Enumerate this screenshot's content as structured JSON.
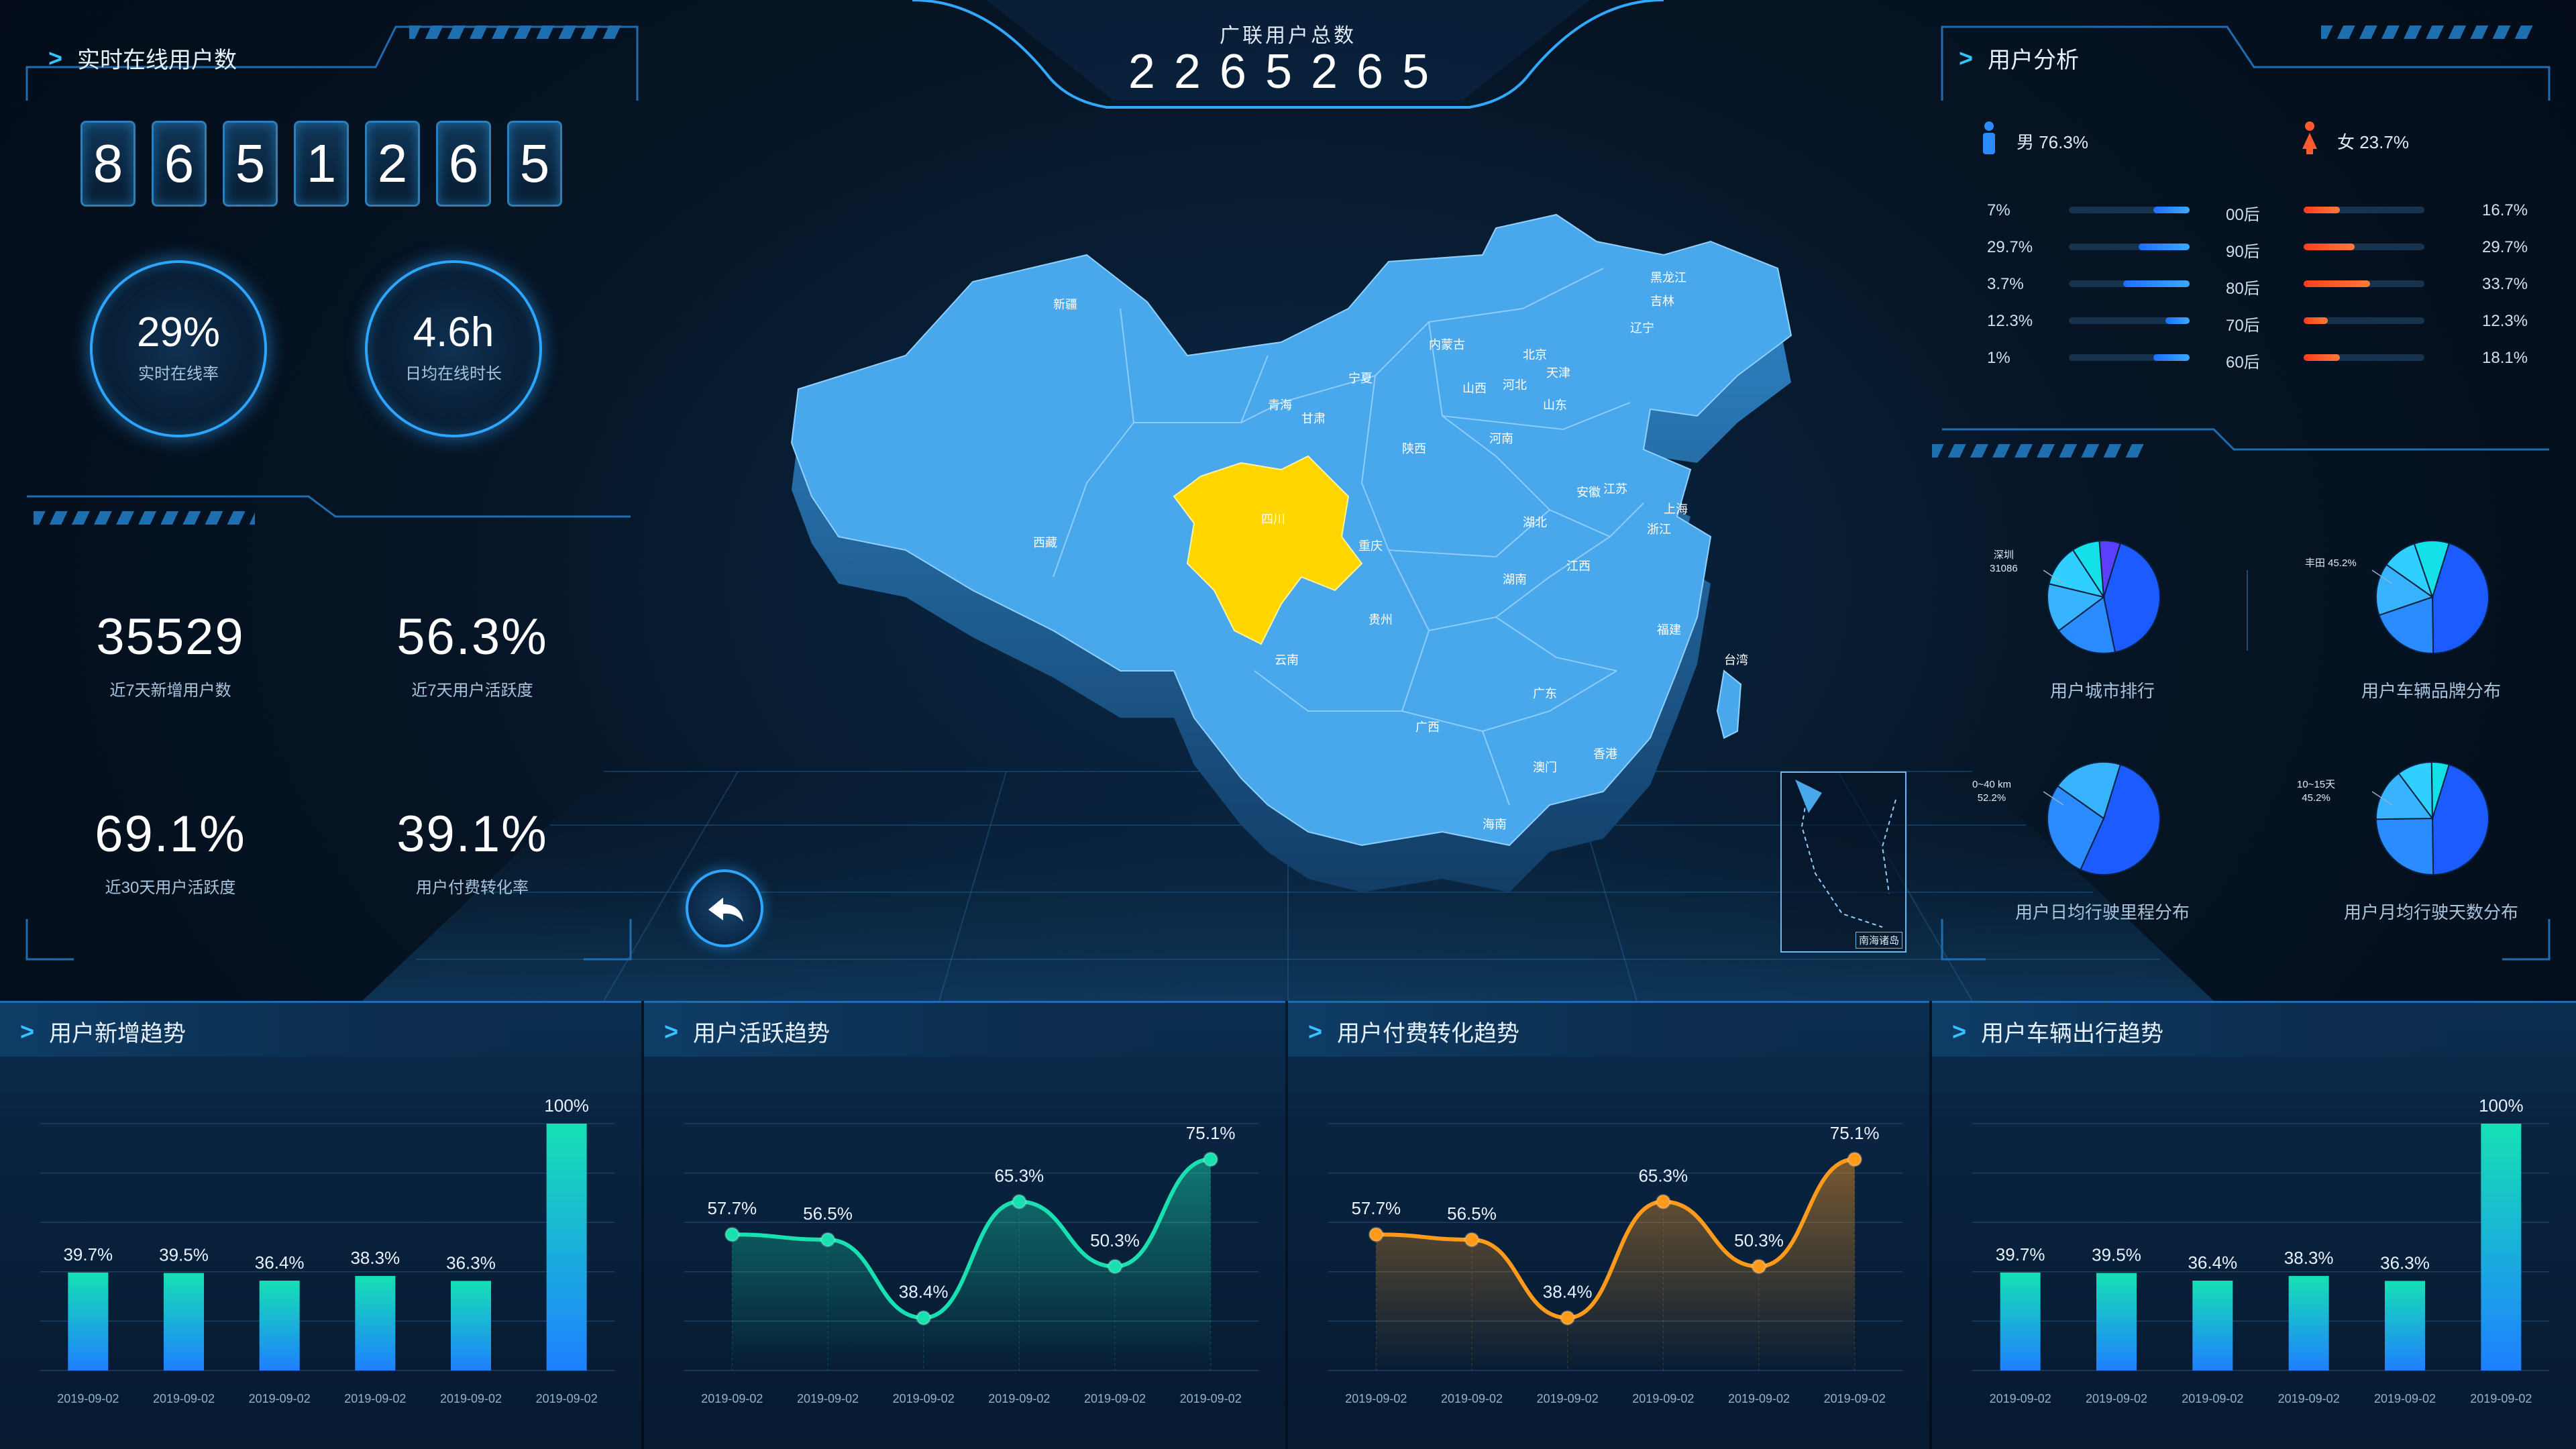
{
  "header": {
    "title": "广联用户总数",
    "total": "2265265"
  },
  "online": {
    "title": "实时在线用户数",
    "digits": [
      "8",
      "6",
      "5",
      "1",
      "2",
      "6",
      "5"
    ],
    "gauges": [
      {
        "value": "29%",
        "label": "实时在线率"
      },
      {
        "value": "4.6h",
        "label": "日均在线时长"
      }
    ]
  },
  "stats": [
    {
      "value": "35529",
      "label": "近7天新增用户数"
    },
    {
      "value": "56.3%",
      "label": "近7天用户活跃度"
    },
    {
      "value": "69.1%",
      "label": "近30天用户活跃度"
    },
    {
      "value": "39.1%",
      "label": "用户付费转化率"
    }
  ],
  "map": {
    "highlight_color": "#ffd600",
    "base_color": "#49a8ec",
    "south_sea_label": "南海诸岛",
    "provinces": [
      "新疆",
      "西藏",
      "青海",
      "甘肃",
      "宁夏",
      "内蒙古",
      "黑龙江",
      "吉林",
      "辽宁",
      "北京",
      "天津",
      "河北",
      "山西",
      "山东",
      "陕西",
      "河南",
      "四川",
      "重庆",
      "贵州",
      "云南",
      "湖北",
      "湖南",
      "江西",
      "安徽",
      "江苏",
      "上海",
      "浙江",
      "福建",
      "广东",
      "广西",
      "海南",
      "台湾",
      "香港",
      "澳门"
    ]
  },
  "analysis": {
    "title": "用户分析",
    "male": "男 76.3%",
    "female": "女 23.7%",
    "ages": [
      {
        "male": "7%",
        "group": "00后",
        "female": "16.7%",
        "male_frac": 0.3,
        "female_frac": 0.3
      },
      {
        "male": "29.7%",
        "group": "90后",
        "female": "29.7%",
        "male_frac": 0.42,
        "female_frac": 0.42
      },
      {
        "male": "3.7%",
        "group": "80后",
        "female": "33.7%",
        "male_frac": 0.55,
        "female_frac": 0.55
      },
      {
        "male": "12.3%",
        "group": "70后",
        "female": "12.3%",
        "male_frac": 0.2,
        "female_frac": 0.2
      },
      {
        "male": "1%",
        "group": "60后",
        "female": "18.1%",
        "male_frac": 0.3,
        "female_frac": 0.3
      }
    ],
    "pies": [
      {
        "label": "用户城市排行",
        "note": [
          "深圳",
          "31086"
        ]
      },
      {
        "label": "用户车辆品牌分布",
        "note": [
          "丰田 45.2%"
        ]
      },
      {
        "label": "用户日均行驶里程分布",
        "note": [
          "0~40 km",
          "52.2%"
        ]
      },
      {
        "label": "用户月均行驶天数分布",
        "note": [
          "10~15天",
          "45.2%"
        ]
      }
    ]
  },
  "chart_data": [
    {
      "type": "bar",
      "title": "用户新增趋势",
      "categories": [
        "2019-09-02",
        "2019-09-02",
        "2019-09-02",
        "2019-09-02",
        "2019-09-02",
        "2019-09-02"
      ],
      "values": [
        39.7,
        39.5,
        36.4,
        38.3,
        36.3,
        100
      ],
      "labels": [
        "39.7%",
        "39.5%",
        "36.4%",
        "38.3%",
        "36.3%",
        "100%"
      ],
      "ylim": [
        0,
        100
      ]
    },
    {
      "type": "line",
      "title": "用户活跃趋势",
      "categories": [
        "2019-09-02",
        "2019-09-02",
        "2019-09-02",
        "2019-09-02",
        "2019-09-02",
        "2019-09-02"
      ],
      "values": [
        57.7,
        56.5,
        38.4,
        65.3,
        50.3,
        75.1
      ],
      "labels": [
        "57.7%",
        "56.5%",
        "38.4%",
        "65.3%",
        "50.3%",
        "75.1%"
      ],
      "color": "#19e0b0"
    },
    {
      "type": "line",
      "title": "用户付费转化趋势",
      "categories": [
        "2019-09-02",
        "2019-09-02",
        "2019-09-02",
        "2019-09-02",
        "2019-09-02",
        "2019-09-02"
      ],
      "values": [
        57.7,
        56.5,
        38.4,
        65.3,
        50.3,
        75.1
      ],
      "labels": [
        "57.7%",
        "56.5%",
        "38.4%",
        "65.3%",
        "50.3%",
        "75.1%"
      ],
      "color": "#ff9a1a"
    },
    {
      "type": "bar",
      "title": "用户车辆出行趋势",
      "categories": [
        "2019-09-02",
        "2019-09-02",
        "2019-09-02",
        "2019-09-02",
        "2019-09-02",
        "2019-09-02"
      ],
      "values": [
        39.7,
        39.5,
        36.4,
        38.3,
        36.3,
        100
      ],
      "labels": [
        "39.7%",
        "39.5%",
        "36.4%",
        "38.3%",
        "36.3%",
        "100%"
      ],
      "ylim": [
        0,
        100
      ]
    }
  ]
}
